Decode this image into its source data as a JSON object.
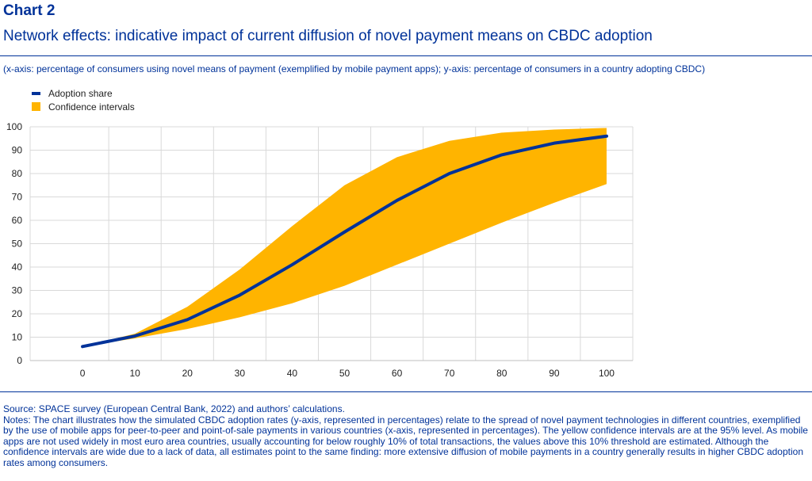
{
  "header": {
    "label": "Chart 2",
    "title": "Network effects: indicative impact of current diffusion of novel payment means on CBDC adoption",
    "subtitle": "(x-axis: percentage of consumers using novel means of payment (exemplified by mobile payment apps); y-axis: percentage of consumers in a country adopting CBDC)"
  },
  "colors": {
    "line": "#003299",
    "band": "#FFB400",
    "grid": "#d9d9d9"
  },
  "chart_data": {
    "type": "line",
    "x": [
      0,
      10,
      20,
      30,
      40,
      50,
      60,
      70,
      80,
      90,
      100
    ],
    "series": [
      {
        "name": "Adoption share",
        "values": [
          6,
          10.5,
          17.5,
          28,
          41,
          55,
          68.5,
          80,
          88,
          93,
          96
        ]
      },
      {
        "name": "Confidence intervals",
        "kind": "band",
        "lower": [
          6,
          9.5,
          13.5,
          18.5,
          24.5,
          32,
          41,
          50,
          59,
          67.5,
          75.5
        ],
        "upper": [
          6,
          11.5,
          23,
          39,
          57.5,
          75,
          87,
          94,
          97.5,
          98.8,
          99.5
        ]
      }
    ],
    "xticks": [
      "0",
      "10",
      "20",
      "30",
      "40",
      "50",
      "60",
      "70",
      "80",
      "90",
      "100"
    ],
    "yticks": [
      "0",
      "10",
      "20",
      "30",
      "40",
      "50",
      "60",
      "70",
      "80",
      "90",
      "100"
    ],
    "xlim": [
      -10,
      105
    ],
    "ylim": [
      0,
      100
    ],
    "grid": true,
    "legend": "top-left"
  },
  "footer": {
    "source": "Source: SPACE survey (European Central Bank, 2022) and authors’ calculations.",
    "notes": "Notes: The chart illustrates how the simulated CBDC adoption rates (y-axis, represented in percentages) relate to the spread of novel payment technologies in different countries, exemplified by the use of mobile apps for peer-to-peer and point-of-sale payments in various countries (x-axis, represented in percentages). The yellow confidence intervals are at the 95% level. As mobile apps are not used widely in most euro area countries, usually accounting for below roughly 10% of total transactions, the values above this 10% threshold are estimated. Although the confidence intervals are wide due to a lack of data, all estimates point to the same finding: more extensive diffusion of mobile payments in a country generally results in higher CBDC adoption rates among consumers."
  }
}
